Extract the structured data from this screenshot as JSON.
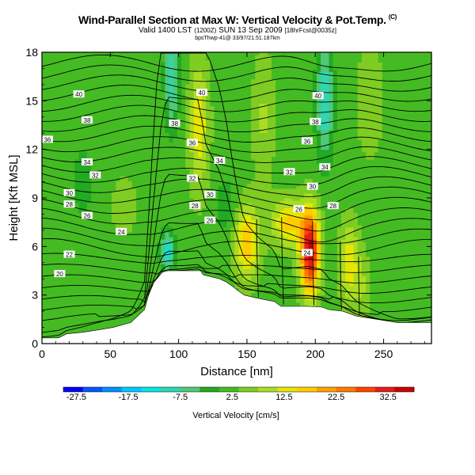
{
  "chart_data": {
    "type": "heatmap",
    "title": "Wind-Parallel Section at Max W: Vertical Velocity & Pot.Temp.",
    "title_tag": "(C)",
    "subtitle_main": "Valid 1400 LST",
    "subtitle_tz": "(1200Z)",
    "subtitle_date": "SUN 13 Sep 2009",
    "subtitle_run": "[18hrFcst@0035z]",
    "subsubtitle": "bpsThwp-41@ 33/97/21.51.187km",
    "xlabel": "Distance [nm]",
    "ylabel": "Height [Kft MSL]",
    "xlim": [
      0,
      285
    ],
    "ylim": [
      0,
      18
    ],
    "xticks": [
      "0",
      "50",
      "100",
      "150",
      "200",
      "250"
    ],
    "xtick_values": [
      0,
      50,
      100,
      150,
      200,
      250
    ],
    "yticks": [
      "0",
      "3",
      "6",
      "9",
      "12",
      "15",
      "18"
    ],
    "ytick_values": [
      0,
      3,
      6,
      9,
      12,
      15,
      18
    ],
    "colorbar": {
      "label": "Vertical Velocity [cm/s]",
      "tick_labels": [
        "-27.5",
        "-17.5",
        "-7.5",
        "2.5",
        "12.5",
        "22.5",
        "32.5"
      ],
      "tick_values": [
        -27.5,
        -17.5,
        -7.5,
        2.5,
        12.5,
        22.5,
        32.5
      ],
      "range": [
        -30,
        37.5
      ],
      "colors": [
        "#0000ff",
        "#0055ff",
        "#0090ff",
        "#00c8ff",
        "#00e6e6",
        "#30d6b0",
        "#50c878",
        "#22aa22",
        "#44bb22",
        "#7fcc22",
        "#aadd22",
        "#e6e600",
        "#ffcc00",
        "#ffa000",
        "#ff7800",
        "#ff4400",
        "#e61a1a",
        "#c80000"
      ]
    },
    "velocity_features": [
      {
        "x": 95,
        "z": 16.5,
        "w": -12,
        "sx": 5,
        "sz": 3
      },
      {
        "x": 92,
        "z": 5.7,
        "w": -14,
        "sx": 5,
        "sz": 1.2
      },
      {
        "x": 207,
        "z": 15,
        "w": -13,
        "sx": 6,
        "sz": 3.5
      },
      {
        "x": 115,
        "z": 13.5,
        "w": 12,
        "sx": 7,
        "sz": 4
      },
      {
        "x": 150,
        "z": 6.3,
        "w": 16,
        "sx": 9,
        "sz": 2.3
      },
      {
        "x": 196,
        "z": 5.7,
        "w": 33,
        "sx": 7,
        "sz": 2.6
      },
      {
        "x": 180,
        "z": 7.5,
        "w": 14,
        "sx": 12,
        "sz": 1.5
      },
      {
        "x": 225,
        "z": 5,
        "w": 12,
        "sx": 7,
        "sz": 2.5
      },
      {
        "x": 235,
        "z": 3.5,
        "w": 5,
        "sx": 6,
        "sz": 2
      },
      {
        "x": 162,
        "z": 14,
        "w": 6,
        "sx": 8,
        "sz": 4
      },
      {
        "x": 240,
        "z": 15,
        "w": 5,
        "sx": 10,
        "sz": 3.5
      },
      {
        "x": 135,
        "z": 8.5,
        "w": -4,
        "sx": 8,
        "sz": 2
      },
      {
        "x": 30,
        "z": 10,
        "w": -3,
        "sx": 10,
        "sz": 3
      },
      {
        "x": 60,
        "z": 8.5,
        "w": 4,
        "sx": 10,
        "sz": 2
      }
    ],
    "terrain": [
      [
        0,
        0.35
      ],
      [
        12,
        0.35
      ],
      [
        18,
        0.6
      ],
      [
        30,
        0.7
      ],
      [
        45,
        0.9
      ],
      [
        52,
        1.0
      ],
      [
        65,
        1.3
      ],
      [
        75,
        2.1
      ],
      [
        78,
        3.0
      ],
      [
        82,
        3.8
      ],
      [
        88,
        4.4
      ],
      [
        92,
        4.5
      ],
      [
        116,
        4.5
      ],
      [
        118,
        4.25
      ],
      [
        130,
        4.0
      ],
      [
        135,
        3.8
      ],
      [
        140,
        3.5
      ],
      [
        143,
        3.3
      ],
      [
        148,
        3.0
      ],
      [
        158,
        2.8
      ],
      [
        170,
        2.6
      ],
      [
        175,
        2.3
      ],
      [
        195,
        2.3
      ],
      [
        205,
        2.25
      ],
      [
        210,
        2.1
      ],
      [
        220,
        2.0
      ],
      [
        230,
        1.7
      ],
      [
        245,
        1.5
      ],
      [
        260,
        1.3
      ],
      [
        285,
        1.3
      ]
    ],
    "theta_labels": [
      {
        "text": "40",
        "x": 27,
        "z": 15.4
      },
      {
        "text": "40",
        "x": 117,
        "z": 15.5
      },
      {
        "text": "40",
        "x": 202,
        "z": 15.3
      },
      {
        "text": "38",
        "x": 33,
        "z": 13.8
      },
      {
        "text": "38",
        "x": 97,
        "z": 13.6
      },
      {
        "text": "38",
        "x": 200,
        "z": 13.7
      },
      {
        "text": "36",
        "x": 4,
        "z": 12.6
      },
      {
        "text": "36",
        "x": 110,
        "z": 12.4
      },
      {
        "text": "36",
        "x": 194,
        "z": 12.5
      },
      {
        "text": "34",
        "x": 33,
        "z": 11.2
      },
      {
        "text": "34",
        "x": 130,
        "z": 11.3
      },
      {
        "text": "34",
        "x": 207,
        "z": 10.9
      },
      {
        "text": "32",
        "x": 39,
        "z": 10.4
      },
      {
        "text": "32",
        "x": 110,
        "z": 10.2
      },
      {
        "text": "32",
        "x": 181,
        "z": 10.6
      },
      {
        "text": "30",
        "x": 20,
        "z": 9.3
      },
      {
        "text": "30",
        "x": 123,
        "z": 9.2
      },
      {
        "text": "30",
        "x": 198,
        "z": 9.7
      },
      {
        "text": "28",
        "x": 20,
        "z": 8.6
      },
      {
        "text": "28",
        "x": 112,
        "z": 8.5
      },
      {
        "text": "28",
        "x": 213,
        "z": 8.5
      },
      {
        "text": "26",
        "x": 33,
        "z": 7.9
      },
      {
        "text": "26",
        "x": 123,
        "z": 7.6
      },
      {
        "text": "26",
        "x": 188,
        "z": 8.3
      },
      {
        "text": "24",
        "x": 58,
        "z": 6.9
      },
      {
        "text": "24",
        "x": 194,
        "z": 5.6
      },
      {
        "text": "22",
        "x": 20,
        "z": 5.5
      },
      {
        "text": "20",
        "x": 13,
        "z": 4.3
      }
    ],
    "grid": false,
    "legend": "colorbar-bottom"
  }
}
